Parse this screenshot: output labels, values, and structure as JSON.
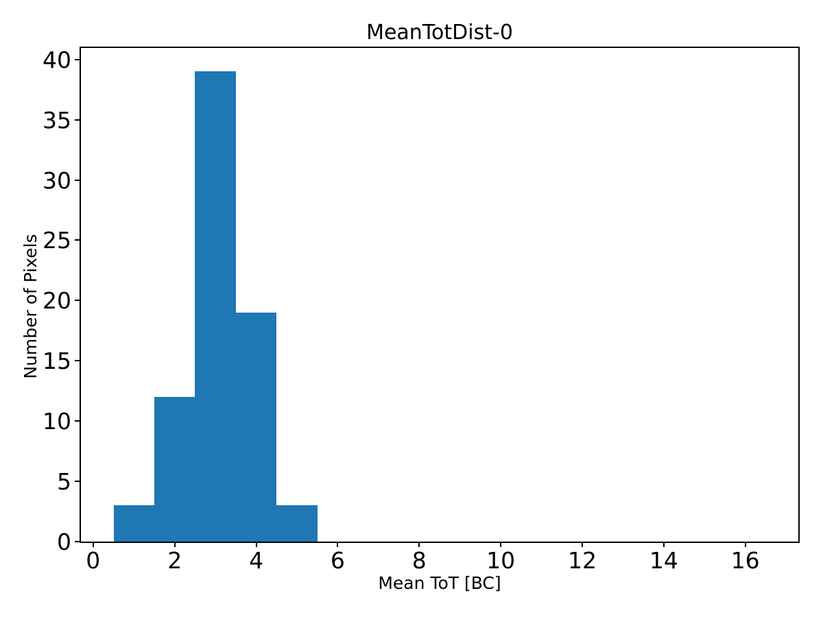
{
  "chart_data": {
    "type": "bar",
    "subtype": "histogram",
    "title": "MeanTotDist-0",
    "xlabel": "Mean ToT [BC]",
    "ylabel": "Number of Pixels",
    "bin_edges": [
      0.5,
      1.5,
      2.5,
      3.5,
      4.5,
      5.5
    ],
    "counts": [
      3,
      12,
      39,
      19,
      3
    ],
    "bar_color": "#1f77b4",
    "xticks": [
      0,
      2,
      4,
      6,
      8,
      10,
      12,
      14,
      16
    ],
    "yticks": [
      0,
      5,
      10,
      15,
      20,
      25,
      30,
      35,
      40
    ],
    "xlim": [
      -0.3,
      17.3
    ],
    "ylim": [
      0,
      40.95
    ],
    "grid": false,
    "legend": null,
    "text_color": "#000000",
    "background_color": "#ffffff"
  }
}
